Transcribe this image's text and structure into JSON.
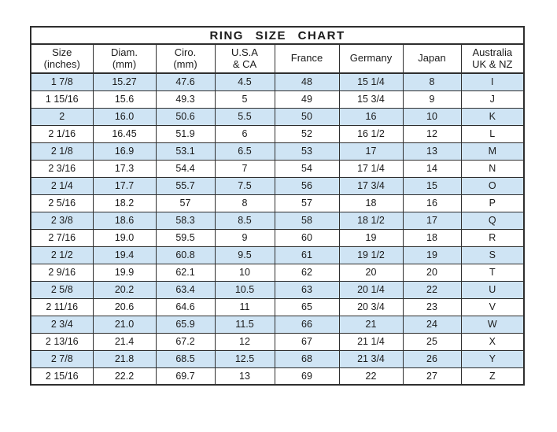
{
  "chart_data": {
    "type": "table",
    "title": "RING SIZE CHART",
    "columns": [
      "Size\n(inches)",
      "Diam.\n(mm)",
      "Ciro.\n(mm)",
      "U.S.A\n& CA",
      "France",
      "Germany",
      "Japan",
      "Australia\nUK & NZ"
    ],
    "rows": [
      [
        "1 7/8",
        "15.27",
        "47.6",
        "4.5",
        "48",
        "15 1/4",
        "8",
        "I"
      ],
      [
        "1 15/16",
        "15.6",
        "49.3",
        "5",
        "49",
        "15 3/4",
        "9",
        "J"
      ],
      [
        "2",
        "16.0",
        "50.6",
        "5.5",
        "50",
        "16",
        "10",
        "K"
      ],
      [
        "2 1/16",
        "16.45",
        "51.9",
        "6",
        "52",
        "16 1/2",
        "12",
        "L"
      ],
      [
        "2 1/8",
        "16.9",
        "53.1",
        "6.5",
        "53",
        "17",
        "13",
        "M"
      ],
      [
        "2 3/16",
        "17.3",
        "54.4",
        "7",
        "54",
        "17 1/4",
        "14",
        "N"
      ],
      [
        "2 1/4",
        "17.7",
        "55.7",
        "7.5",
        "56",
        "17 3/4",
        "15",
        "O"
      ],
      [
        "2 5/16",
        "18.2",
        "57",
        "8",
        "57",
        "18",
        "16",
        "P"
      ],
      [
        "2 3/8",
        "18.6",
        "58.3",
        "8.5",
        "58",
        "18 1/2",
        "17",
        "Q"
      ],
      [
        "2 7/16",
        "19.0",
        "59.5",
        "9",
        "60",
        "19",
        "18",
        "R"
      ],
      [
        "2 1/2",
        "19.4",
        "60.8",
        "9.5",
        "61",
        "19 1/2",
        "19",
        "S"
      ],
      [
        "2 9/16",
        "19.9",
        "62.1",
        "10",
        "62",
        "20",
        "20",
        "T"
      ],
      [
        "2 5/8",
        "20.2",
        "63.4",
        "10.5",
        "63",
        "20 1/4",
        "22",
        "U"
      ],
      [
        "2 11/16",
        "20.6",
        "64.6",
        "11",
        "65",
        "20 3/4",
        "23",
        "V"
      ],
      [
        "2 3/4",
        "21.0",
        "65.9",
        "11.5",
        "66",
        "21",
        "24",
        "W"
      ],
      [
        "2 13/16",
        "21.4",
        "67.2",
        "12",
        "67",
        "21 1/4",
        "25",
        "X"
      ],
      [
        "2 7/8",
        "21.8",
        "68.5",
        "12.5",
        "68",
        "21 3/4",
        "26",
        "Y"
      ],
      [
        "2 15/16",
        "22.2",
        "69.7",
        "13",
        "69",
        "22",
        "27",
        "Z"
      ]
    ]
  },
  "colors": {
    "row_highlight": "#cfe4f4",
    "border": "#2e2e2e",
    "text": "#1b1b1b",
    "background": "#ffffff"
  }
}
